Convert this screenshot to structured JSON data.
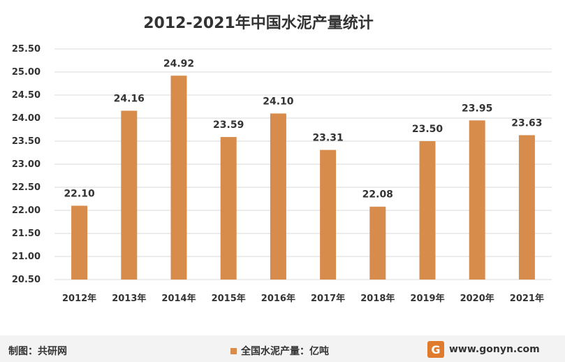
{
  "chart_data": {
    "type": "bar",
    "title": "2012-2021年中国水泥产量统计",
    "categories": [
      "2012年",
      "2013年",
      "2014年",
      "2015年",
      "2016年",
      "2017年",
      "2018年",
      "2019年",
      "2020年",
      "2021年"
    ],
    "series": [
      {
        "name": "全国水泥产量：亿吨",
        "values": [
          22.1,
          24.16,
          24.92,
          23.59,
          24.1,
          23.31,
          22.08,
          23.5,
          23.95,
          23.63
        ]
      }
    ],
    "data_labels": [
      "22.10",
      "24.16",
      "24.92",
      "23.59",
      "24.10",
      "23.31",
      "22.08",
      "23.50",
      "23.95",
      "23.63"
    ],
    "ylim": [
      20.5,
      25.5
    ],
    "yticks": [
      20.5,
      21.0,
      21.5,
      22.0,
      22.5,
      23.0,
      23.5,
      24.0,
      24.5,
      25.0,
      25.5
    ],
    "ytick_labels": [
      "20.50",
      "21.00",
      "21.50",
      "22.00",
      "22.50",
      "23.00",
      "23.50",
      "24.00",
      "24.50",
      "25.00",
      "25.50"
    ],
    "grid": true,
    "legend": "bottom",
    "bar_color": "#d88c4c"
  },
  "footer": {
    "credit": "制图：共研网",
    "watermark_logo_letter": "G",
    "watermark_site": "www.gonyn.com"
  },
  "colors": {
    "bar": "#d88c4c",
    "grid": "#d9d9d9",
    "text": "#333333",
    "logo": "#e07a2d"
  }
}
